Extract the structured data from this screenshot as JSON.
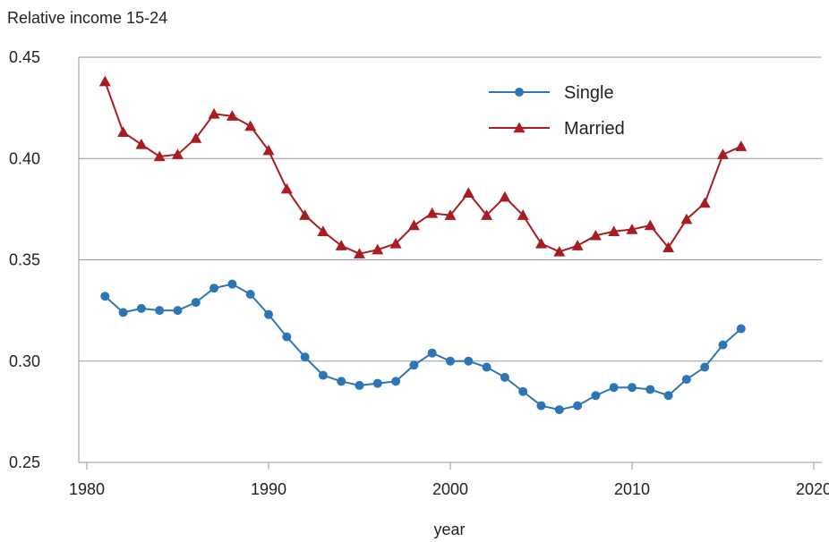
{
  "chart_data": {
    "type": "line",
    "title": "",
    "ylabel": "Relative income 15-24",
    "xlabel": "year",
    "xlim": [
      1980,
      2020
    ],
    "ylim": [
      0.25,
      0.45
    ],
    "xticks": [
      "1980",
      "1990",
      "2000",
      "2010",
      "2020"
    ],
    "yticks": [
      "0.25",
      "0.30",
      "0.35",
      "0.40",
      "0.45"
    ],
    "grid": "horizontal",
    "legend_position": "top-right",
    "x": [
      1981,
      1982,
      1983,
      1984,
      1985,
      1986,
      1987,
      1988,
      1989,
      1990,
      1991,
      1992,
      1993,
      1994,
      1995,
      1996,
      1997,
      1998,
      1999,
      2000,
      2001,
      2002,
      2003,
      2004,
      2005,
      2006,
      2007,
      2008,
      2009,
      2010,
      2011,
      2012,
      2013,
      2014,
      2015,
      2016
    ],
    "series": [
      {
        "name": "Single",
        "color": "#2e75b6",
        "marker": "circle",
        "values": [
          0.332,
          0.324,
          0.326,
          0.325,
          0.325,
          0.329,
          0.336,
          0.338,
          0.333,
          0.323,
          0.312,
          0.302,
          0.293,
          0.29,
          0.288,
          0.289,
          0.29,
          0.298,
          0.304,
          0.3,
          0.3,
          0.297,
          0.292,
          0.285,
          0.278,
          0.276,
          0.278,
          0.283,
          0.287,
          0.287,
          0.286,
          0.283,
          0.291,
          0.297,
          0.308,
          0.316
        ]
      },
      {
        "name": "Married",
        "color": "#a81c22",
        "marker": "triangle",
        "values": [
          0.438,
          0.413,
          0.407,
          0.401,
          0.402,
          0.41,
          0.422,
          0.421,
          0.416,
          0.404,
          0.385,
          0.372,
          0.364,
          0.357,
          0.353,
          0.355,
          0.358,
          0.367,
          0.373,
          0.372,
          0.383,
          0.372,
          0.381,
          0.372,
          0.358,
          0.354,
          0.357,
          0.362,
          0.364,
          0.365,
          0.367,
          0.356,
          0.37,
          0.378,
          0.402,
          0.406
        ]
      }
    ]
  },
  "colors": {
    "grid": "#999999",
    "axis": "#999999",
    "text": "#222222"
  }
}
